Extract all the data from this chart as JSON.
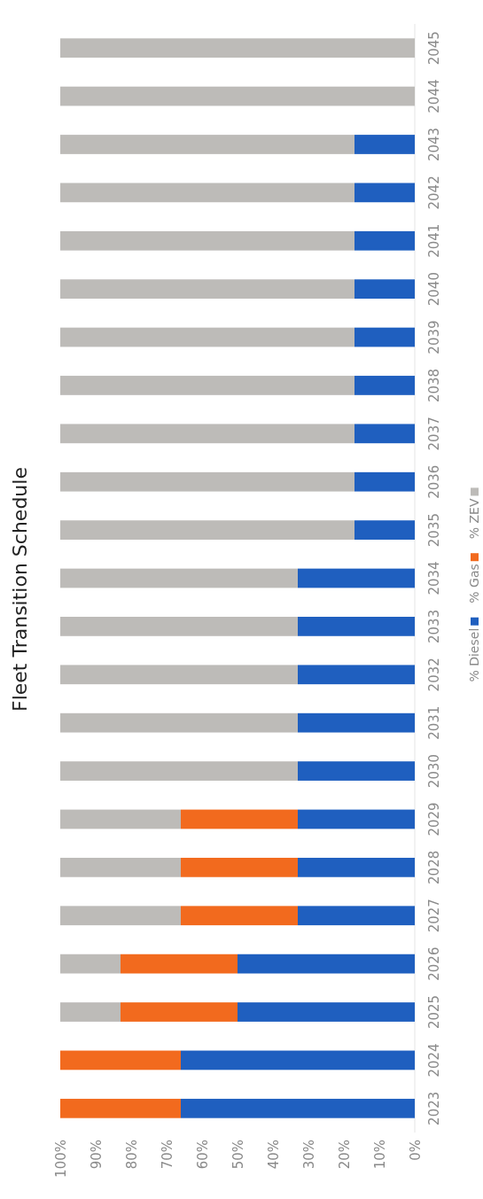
{
  "chart_data": {
    "type": "bar",
    "title": "Fleet Transition Schedule",
    "stacked": true,
    "orientation": "horizontal",
    "categories": [
      "2045",
      "2044",
      "2043",
      "2042",
      "2041",
      "2040",
      "2039",
      "2038",
      "2037",
      "2036",
      "2035",
      "2034",
      "2033",
      "2032",
      "2031",
      "2030",
      "2029",
      "2028",
      "2027",
      "2026",
      "2025",
      "2024",
      "2023"
    ],
    "series": [
      {
        "name": "% Diesel",
        "color": "#1f5fbf",
        "values": [
          0,
          0,
          17,
          17,
          17,
          17,
          17,
          17,
          17,
          17,
          17,
          33,
          33,
          33,
          33,
          33,
          33,
          33,
          33,
          50,
          50,
          66,
          66
        ]
      },
      {
        "name": "% Gas",
        "color": "#f26a1e",
        "values": [
          0,
          0,
          0,
          0,
          0,
          0,
          0,
          0,
          0,
          0,
          0,
          0,
          0,
          0,
          0,
          0,
          33,
          33,
          33,
          33,
          33,
          34,
          34
        ]
      },
      {
        "name": "% ZEV",
        "color": "#bdbbb8",
        "values": [
          100,
          100,
          83,
          83,
          83,
          83,
          83,
          83,
          83,
          83,
          83,
          67,
          67,
          67,
          67,
          67,
          34,
          34,
          34,
          17,
          17,
          0,
          0
        ]
      }
    ],
    "xlim": [
      100,
      0
    ],
    "xticks": [
      {
        "value": 100,
        "label": "100%"
      },
      {
        "value": 90,
        "label": "90%"
      },
      {
        "value": 80,
        "label": "80%"
      },
      {
        "value": 70,
        "label": "70%"
      },
      {
        "value": 60,
        "label": "60%"
      },
      {
        "value": 50,
        "label": "50%"
      },
      {
        "value": 40,
        "label": "40%"
      },
      {
        "value": 30,
        "label": "30%"
      },
      {
        "value": 20,
        "label": "20%"
      },
      {
        "value": 10,
        "label": "10%"
      },
      {
        "value": 0,
        "label": "0%"
      }
    ],
    "grid": false,
    "legend": "right"
  }
}
